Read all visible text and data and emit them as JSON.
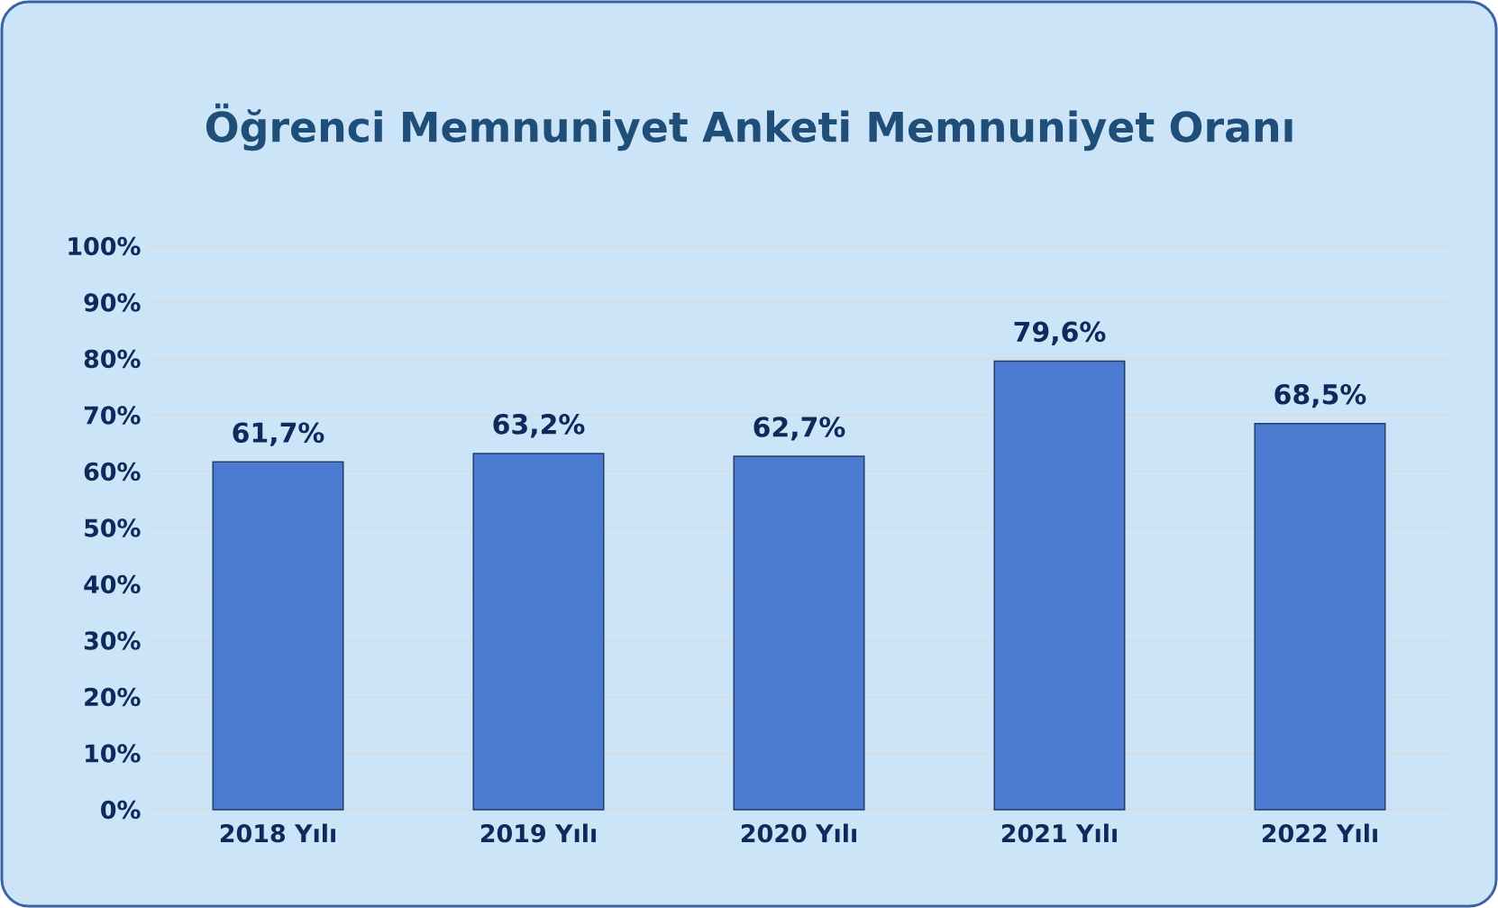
{
  "chart_data": {
    "type": "bar",
    "title": "Öğrenci Memnuniyet Anketi Memnuniyet Oranı",
    "categories": [
      "2018 Yılı",
      "2019 Yılı",
      "2020 Yılı",
      "2021 Yılı",
      "2022 Yılı"
    ],
    "values": [
      61.7,
      63.2,
      62.7,
      79.6,
      68.5
    ],
    "value_labels": [
      "61,7%",
      "63,2%",
      "62,7%",
      "79,6%",
      "68,5%"
    ],
    "color": "#4a7bd1",
    "ylim": [
      0,
      100
    ],
    "yticks": [
      {
        "value": 0,
        "label": "0%"
      },
      {
        "value": 10,
        "label": "10%"
      },
      {
        "value": 20,
        "label": "20%"
      },
      {
        "value": 30,
        "label": "30%"
      },
      {
        "value": 40,
        "label": "40%"
      },
      {
        "value": 50,
        "label": "50%"
      },
      {
        "value": 60,
        "label": "60%"
      },
      {
        "value": 70,
        "label": "70%"
      },
      {
        "value": 80,
        "label": "80%"
      },
      {
        "value": 90,
        "label": "90%"
      },
      {
        "value": 100,
        "label": "100%"
      }
    ],
    "grid": "y"
  }
}
